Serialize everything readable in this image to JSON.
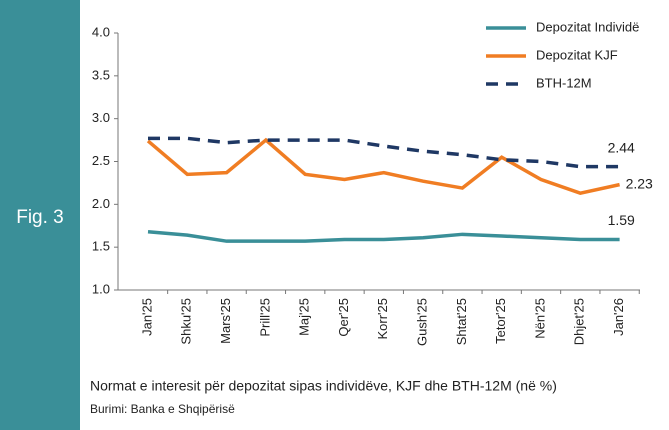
{
  "chart_data": {
    "type": "line",
    "figure_label": "Fig. 3",
    "caption": "Normat e interesit për depozitat sipas individëve, KJF dhe BTH-12M (në %)",
    "source": "Burimi: Banka e Shqipërisë",
    "categories": [
      "Jan'25",
      "Shku'25",
      "Mars'25",
      "Prill'25",
      "Maj'25",
      "Qer'25",
      "Korr'25",
      "Gush'25",
      "Shtat'25",
      "Tetor'25",
      "Nën'25",
      "Dhjet'25",
      "Jan'26"
    ],
    "series": [
      {
        "name": "Depozitat Individë",
        "color": "#3a8f98",
        "dash": false,
        "values": [
          1.68,
          1.64,
          1.57,
          1.57,
          1.57,
          1.59,
          1.59,
          1.61,
          1.65,
          1.63,
          1.61,
          1.59,
          1.59
        ]
      },
      {
        "name": "Depozitat KJF",
        "color": "#f07d23",
        "dash": false,
        "values": [
          2.74,
          2.35,
          2.37,
          2.75,
          2.35,
          2.29,
          2.37,
          2.27,
          2.19,
          2.55,
          2.29,
          2.13,
          2.23
        ]
      },
      {
        "name": "BTH-12M",
        "color": "#1f3864",
        "dash": true,
        "values": [
          2.77,
          2.77,
          2.72,
          2.75,
          2.75,
          2.75,
          2.68,
          2.62,
          2.58,
          2.52,
          2.5,
          2.44,
          2.44
        ]
      }
    ],
    "ylim": [
      1,
      4
    ],
    "yticks": [
      {
        "value": 1,
        "label": "1.0"
      },
      1.5,
      {
        "value": 2,
        "label": "2.0"
      },
      2.5,
      {
        "value": 3,
        "label": "3.0"
      },
      3.5,
      {
        "value": 4,
        "label": "4.0"
      }
    ],
    "grid": false,
    "legend": "top-right"
  }
}
